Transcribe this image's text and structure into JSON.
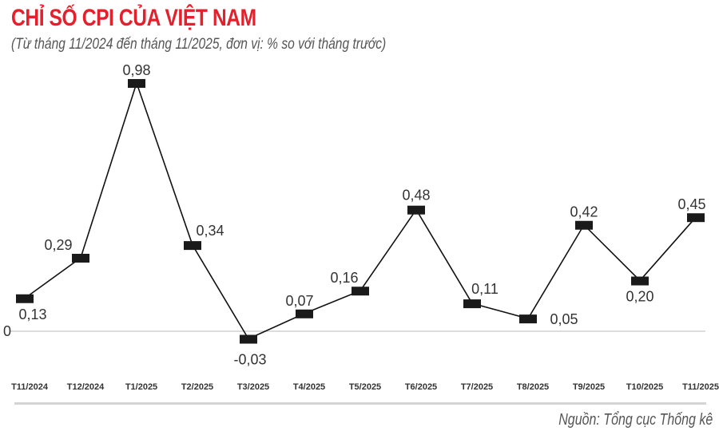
{
  "title": "CHỈ SỐ CPI CỦA VIỆT NAM",
  "subtitle": "(Từ tháng 11/2024 đến tháng 11/2025, đơn vị: % so với tháng trước)",
  "source": "Nguồn: Tổng cục Thống kê",
  "chart_data": {
    "type": "line",
    "title": "CHỈ SỐ CPI CỦA VIỆT NAM",
    "subtitle": "(Từ tháng 11/2024 đến tháng 11/2025, đơn vị: % so với tháng trước)",
    "categories": [
      "T11/2024",
      "T12/2024",
      "T1/2025",
      "T2/2025",
      "T3/2025",
      "T4/2025",
      "T5/2025",
      "T6/2025",
      "T7/2025",
      "T8/2025",
      "T9/2025",
      "T10/2025",
      "T11/2025"
    ],
    "values": [
      0.13,
      0.29,
      0.98,
      0.34,
      -0.03,
      0.07,
      0.16,
      0.48,
      0.11,
      0.05,
      0.42,
      0.2,
      0.45
    ],
    "value_labels": [
      "0,13",
      "0,29",
      "0,98",
      "0,34",
      "-0,03",
      "0,07",
      "0,16",
      "0,48",
      "0,11",
      "0,05",
      "0,42",
      "0,20",
      "0,45"
    ],
    "y_zero_label": "0",
    "grid": false,
    "legend": "none",
    "colors": {
      "line": "#111111",
      "marker": "#1a1a1a",
      "highlight_label": "#e3202b",
      "label": "#333333",
      "axis": "#d0d0d0"
    }
  }
}
